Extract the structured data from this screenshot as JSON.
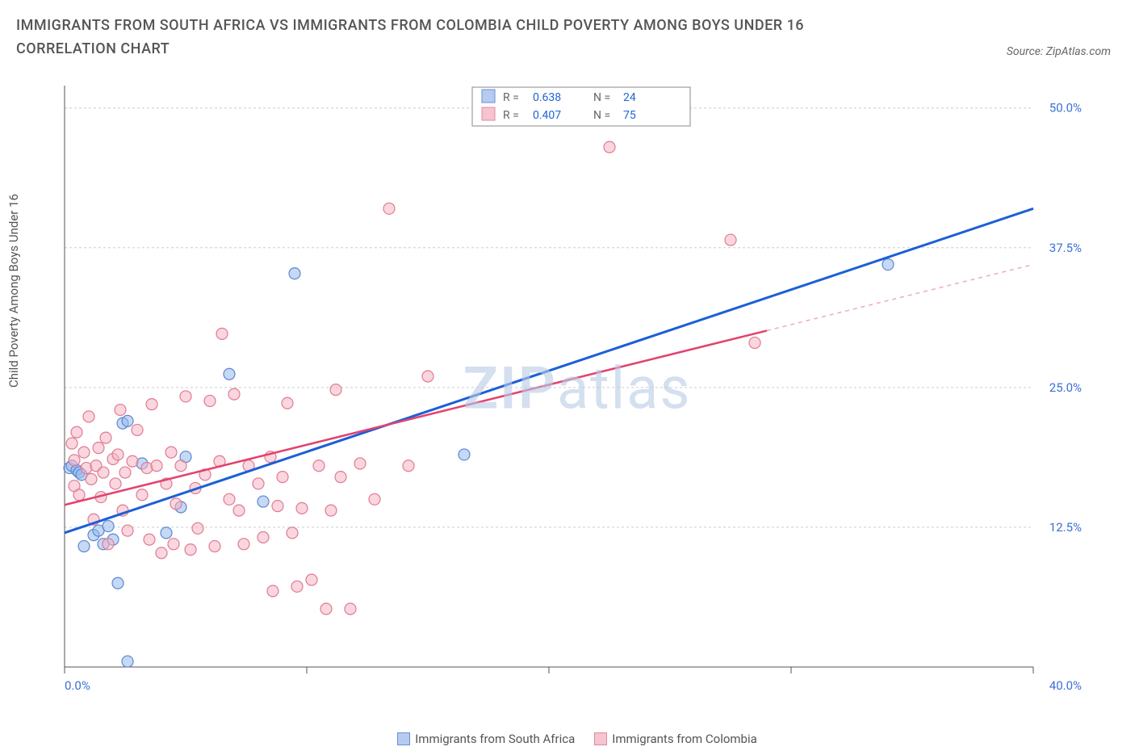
{
  "title": "IMMIGRANTS FROM SOUTH AFRICA VS IMMIGRANTS FROM COLOMBIA CHILD POVERTY AMONG BOYS UNDER 16 CORRELATION CHART",
  "source_label": "Source: ZipAtlas.com",
  "ylabel": "Child Poverty Among Boys Under 16",
  "watermark_bold": "ZIP",
  "watermark_rest": "atlas",
  "chart": {
    "type": "scatter+regression",
    "background_color": "#ffffff",
    "grid_color": "#cccccc",
    "axis_color": "#555555",
    "tick_color": "#3b6fd6",
    "xlim": [
      0,
      40
    ],
    "ylim": [
      0,
      52
    ],
    "xtick_step": 10,
    "yticks": [
      12.5,
      25.0,
      37.5,
      50.0
    ],
    "xtick_labels": [
      "0.0%",
      "",
      "",
      "",
      "40.0%"
    ],
    "ytick_labels": [
      "12.5%",
      "25.0%",
      "37.5%",
      "50.0%"
    ],
    "legend_top": {
      "border_color": "#888888",
      "entries": [
        {
          "swatch_fill": "#b6cbef",
          "swatch_stroke": "#6a8dd8",
          "R": "0.638",
          "N": "24"
        },
        {
          "swatch_fill": "#f5c4cf",
          "swatch_stroke": "#e488a0",
          "R": "0.407",
          "N": "75"
        }
      ],
      "label_color": "#666666",
      "value_color": "#1f63d6"
    },
    "legend_bottom": [
      {
        "swatch_fill": "#b6cbef",
        "swatch_stroke": "#6a8dd8",
        "label": "Immigrants from South Africa"
      },
      {
        "swatch_fill": "#f5c4cf",
        "swatch_stroke": "#e488a0",
        "label": "Immigrants from Colombia"
      }
    ],
    "series": [
      {
        "name": "south_africa",
        "marker_fill": "rgba(150,185,235,0.55)",
        "marker_stroke": "#5d86d4",
        "marker_r": 7,
        "points": [
          [
            0.2,
            17.8
          ],
          [
            0.3,
            18.0
          ],
          [
            0.5,
            17.6
          ],
          [
            0.6,
            17.4
          ],
          [
            0.7,
            17.2
          ],
          [
            0.8,
            10.8
          ],
          [
            1.2,
            11.8
          ],
          [
            1.4,
            12.2
          ],
          [
            1.6,
            11.0
          ],
          [
            1.8,
            12.6
          ],
          [
            2.0,
            11.4
          ],
          [
            2.2,
            7.5
          ],
          [
            2.4,
            21.8
          ],
          [
            2.6,
            22.0
          ],
          [
            2.6,
            0.5
          ],
          [
            3.2,
            18.2
          ],
          [
            4.2,
            12.0
          ],
          [
            4.8,
            14.3
          ],
          [
            5.0,
            18.8
          ],
          [
            6.8,
            26.2
          ],
          [
            9.5,
            35.2
          ],
          [
            16.5,
            19.0
          ],
          [
            34.0,
            36.0
          ],
          [
            8.2,
            14.8
          ]
        ],
        "trend": {
          "x1": 0,
          "y1": 12.0,
          "x2": 40,
          "y2": 41.0,
          "solid_to_x": 40,
          "stroke": "#1b5fd6",
          "stroke_width": 3
        }
      },
      {
        "name": "colombia",
        "marker_fill": "rgba(245,180,195,0.55)",
        "marker_stroke": "#e07a94",
        "marker_r": 7,
        "points": [
          [
            0.3,
            20.0
          ],
          [
            0.4,
            18.5
          ],
          [
            0.4,
            16.2
          ],
          [
            0.5,
            21.0
          ],
          [
            0.6,
            15.4
          ],
          [
            0.8,
            19.2
          ],
          [
            0.9,
            17.8
          ],
          [
            1.0,
            22.4
          ],
          [
            1.1,
            16.8
          ],
          [
            1.2,
            13.2
          ],
          [
            1.3,
            18.0
          ],
          [
            1.4,
            19.6
          ],
          [
            1.5,
            15.2
          ],
          [
            1.6,
            17.4
          ],
          [
            1.7,
            20.5
          ],
          [
            1.8,
            11.0
          ],
          [
            2.0,
            18.6
          ],
          [
            2.1,
            16.4
          ],
          [
            2.2,
            19.0
          ],
          [
            2.3,
            23.0
          ],
          [
            2.4,
            14.0
          ],
          [
            2.5,
            17.4
          ],
          [
            2.6,
            12.2
          ],
          [
            2.8,
            18.4
          ],
          [
            3.0,
            21.2
          ],
          [
            3.2,
            15.4
          ],
          [
            3.4,
            17.8
          ],
          [
            3.5,
            11.4
          ],
          [
            3.6,
            23.5
          ],
          [
            3.8,
            18.0
          ],
          [
            4.0,
            10.2
          ],
          [
            4.2,
            16.4
          ],
          [
            4.4,
            19.2
          ],
          [
            4.5,
            11.0
          ],
          [
            4.6,
            14.6
          ],
          [
            4.8,
            18.0
          ],
          [
            5.0,
            24.2
          ],
          [
            5.2,
            10.5
          ],
          [
            5.4,
            16.0
          ],
          [
            5.5,
            12.4
          ],
          [
            5.8,
            17.2
          ],
          [
            6.0,
            23.8
          ],
          [
            6.2,
            10.8
          ],
          [
            6.4,
            18.4
          ],
          [
            6.5,
            29.8
          ],
          [
            6.8,
            15.0
          ],
          [
            7.0,
            24.4
          ],
          [
            7.2,
            14.0
          ],
          [
            7.4,
            11.0
          ],
          [
            7.6,
            18.0
          ],
          [
            8.0,
            16.4
          ],
          [
            8.2,
            11.6
          ],
          [
            8.5,
            18.8
          ],
          [
            8.6,
            6.8
          ],
          [
            8.8,
            14.4
          ],
          [
            9.0,
            17.0
          ],
          [
            9.2,
            23.6
          ],
          [
            9.4,
            12.0
          ],
          [
            9.6,
            7.2
          ],
          [
            9.8,
            14.2
          ],
          [
            10.2,
            7.8
          ],
          [
            10.5,
            18.0
          ],
          [
            10.8,
            5.2
          ],
          [
            11.0,
            14.0
          ],
          [
            11.2,
            24.8
          ],
          [
            11.4,
            17.0
          ],
          [
            11.8,
            5.2
          ],
          [
            12.2,
            18.2
          ],
          [
            12.8,
            15.0
          ],
          [
            13.4,
            41.0
          ],
          [
            14.2,
            18.0
          ],
          [
            15.0,
            26.0
          ],
          [
            22.5,
            46.5
          ],
          [
            27.5,
            38.2
          ],
          [
            28.5,
            29.0
          ]
        ],
        "trend": {
          "x1": 0,
          "y1": 14.5,
          "x2": 40,
          "y2": 36.0,
          "solid_to_x": 29,
          "stroke": "#e3426e",
          "stroke_width": 2.5,
          "dash_stroke": "#f2a8b9"
        }
      }
    ]
  }
}
